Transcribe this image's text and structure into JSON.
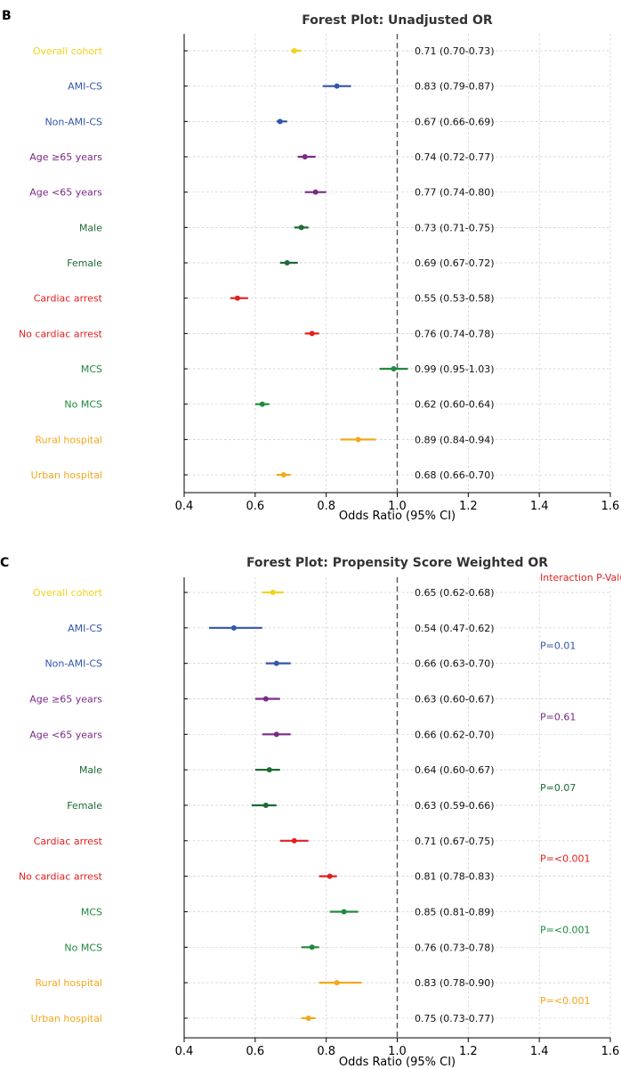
{
  "chart_data": [
    {
      "type": "forest",
      "panel_label": "B",
      "title": "Forest Plot: Unadjusted OR",
      "xlabel": "Odds Ratio (95% CI)",
      "xlim": [
        0.4,
        1.6
      ],
      "xticks": [
        "0.4",
        "0.6",
        "0.8",
        "1.0",
        "1.2",
        "1.4",
        "1.6"
      ],
      "reference_line": 1.0,
      "grid": true,
      "rows": [
        {
          "label": "Overall cohort",
          "or": 0.71,
          "lo": 0.7,
          "hi": 0.73,
          "text": "0.71 (0.70-0.73)",
          "color": "#f2d21b"
        },
        {
          "label": "AMI-CS",
          "or": 0.83,
          "lo": 0.79,
          "hi": 0.87,
          "text": "0.83 (0.79-0.87)",
          "color": "#3355aa"
        },
        {
          "label": "Non-AMI-CS",
          "or": 0.67,
          "lo": 0.66,
          "hi": 0.69,
          "text": "0.67 (0.66-0.69)",
          "color": "#3355aa"
        },
        {
          "label": "Age ≥65 years",
          "or": 0.74,
          "lo": 0.72,
          "hi": 0.77,
          "text": "0.74 (0.72-0.77)",
          "color": "#7a2a85"
        },
        {
          "label": "Age <65 years",
          "or": 0.77,
          "lo": 0.74,
          "hi": 0.8,
          "text": "0.77 (0.74-0.80)",
          "color": "#7a2a85"
        },
        {
          "label": "Male",
          "or": 0.73,
          "lo": 0.71,
          "hi": 0.75,
          "text": "0.73 (0.71-0.75)",
          "color": "#1e6b35"
        },
        {
          "label": "Female",
          "or": 0.69,
          "lo": 0.67,
          "hi": 0.72,
          "text": "0.69 (0.67-0.72)",
          "color": "#1e6b35"
        },
        {
          "label": "Cardiac arrest",
          "or": 0.55,
          "lo": 0.53,
          "hi": 0.58,
          "text": "0.55 (0.53-0.58)",
          "color": "#e02020"
        },
        {
          "label": "No cardiac arrest",
          "or": 0.76,
          "lo": 0.74,
          "hi": 0.78,
          "text": "0.76 (0.74-0.78)",
          "color": "#e02020"
        },
        {
          "label": "MCS",
          "or": 0.99,
          "lo": 0.95,
          "hi": 1.03,
          "text": "0.99 (0.95-1.03)",
          "color": "#1e8a3c"
        },
        {
          "label": "No MCS",
          "or": 0.62,
          "lo": 0.6,
          "hi": 0.64,
          "text": "0.62 (0.60-0.64)",
          "color": "#1e8a3c"
        },
        {
          "label": "Rural hospital",
          "or": 0.89,
          "lo": 0.84,
          "hi": 0.94,
          "text": "0.89 (0.84-0.94)",
          "color": "#f2a81d"
        },
        {
          "label": "Urban hospital",
          "or": 0.68,
          "lo": 0.66,
          "hi": 0.7,
          "text": "0.68 (0.66-0.70)",
          "color": "#f2a81d"
        }
      ]
    },
    {
      "type": "forest",
      "panel_label": "C",
      "title": "Forest Plot: Propensity Score Weighted OR",
      "xlabel": "Odds Ratio (95% CI)",
      "xlim": [
        0.4,
        1.6
      ],
      "xticks": [
        "0.4",
        "0.6",
        "0.8",
        "1.0",
        "1.2",
        "1.4",
        "1.6"
      ],
      "reference_line": 1.0,
      "grid": true,
      "interaction_header": "Interaction P-Value",
      "rows": [
        {
          "label": "Overall cohort",
          "or": 0.65,
          "lo": 0.62,
          "hi": 0.68,
          "text": "0.65 (0.62-0.68)",
          "color": "#f2d21b"
        },
        {
          "label": "AMI-CS",
          "or": 0.54,
          "lo": 0.47,
          "hi": 0.62,
          "text": "0.54 (0.47-0.62)",
          "color": "#3355aa"
        },
        {
          "label": "Non-AMI-CS",
          "or": 0.66,
          "lo": 0.63,
          "hi": 0.7,
          "text": "0.66 (0.63-0.70)",
          "color": "#3355aa"
        },
        {
          "label": "Age ≥65 years",
          "or": 0.63,
          "lo": 0.6,
          "hi": 0.67,
          "text": "0.63 (0.60-0.67)",
          "color": "#7a2a85"
        },
        {
          "label": "Age <65 years",
          "or": 0.66,
          "lo": 0.62,
          "hi": 0.7,
          "text": "0.66 (0.62-0.70)",
          "color": "#7a2a85"
        },
        {
          "label": "Male",
          "or": 0.64,
          "lo": 0.6,
          "hi": 0.67,
          "text": "0.64 (0.60-0.67)",
          "color": "#1e6b35"
        },
        {
          "label": "Female",
          "or": 0.63,
          "lo": 0.59,
          "hi": 0.66,
          "text": "0.63 (0.59-0.66)",
          "color": "#1e6b35"
        },
        {
          "label": "Cardiac arrest",
          "or": 0.71,
          "lo": 0.67,
          "hi": 0.75,
          "text": "0.71 (0.67-0.75)",
          "color": "#e02020"
        },
        {
          "label": "No cardiac arrest",
          "or": 0.81,
          "lo": 0.78,
          "hi": 0.83,
          "text": "0.81 (0.78-0.83)",
          "color": "#e02020"
        },
        {
          "label": "MCS",
          "or": 0.85,
          "lo": 0.81,
          "hi": 0.89,
          "text": "0.85 (0.81-0.89)",
          "color": "#1e8a3c"
        },
        {
          "label": "No MCS",
          "or": 0.76,
          "lo": 0.73,
          "hi": 0.78,
          "text": "0.76 (0.73-0.78)",
          "color": "#1e8a3c"
        },
        {
          "label": "Rural hospital",
          "or": 0.83,
          "lo": 0.78,
          "hi": 0.9,
          "text": "0.83 (0.78-0.90)",
          "color": "#f2a81d"
        },
        {
          "label": "Urban hospital",
          "or": 0.75,
          "lo": 0.73,
          "hi": 0.77,
          "text": "0.75 (0.73-0.77)",
          "color": "#f2a81d"
        }
      ],
      "p_values": [
        {
          "text": "P=0.01",
          "between_rows": [
            1,
            2
          ],
          "color": "#3355aa"
        },
        {
          "text": "P=0.61",
          "between_rows": [
            3,
            4
          ],
          "color": "#7a2a85"
        },
        {
          "text": "P=0.07",
          "between_rows": [
            5,
            6
          ],
          "color": "#1e6b35"
        },
        {
          "text": "P=<0.001",
          "between_rows": [
            7,
            8
          ],
          "color": "#e02020"
        },
        {
          "text": "P=<0.001",
          "between_rows": [
            9,
            10
          ],
          "color": "#1e8a3c"
        },
        {
          "text": "P=<0.001",
          "between_rows": [
            11,
            12
          ],
          "color": "#f2a81d"
        }
      ]
    }
  ]
}
